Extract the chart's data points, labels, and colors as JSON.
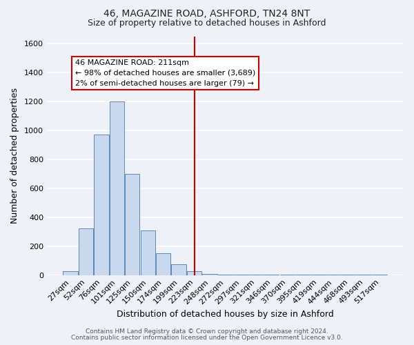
{
  "title_line1": "46, MAGAZINE ROAD, ASHFORD, TN24 8NT",
  "title_line2": "Size of property relative to detached houses in Ashford",
  "xlabel": "Distribution of detached houses by size in Ashford",
  "ylabel": "Number of detached properties",
  "categories": [
    "27sqm",
    "52sqm",
    "76sqm",
    "101sqm",
    "125sqm",
    "150sqm",
    "174sqm",
    "199sqm",
    "223sqm",
    "248sqm",
    "272sqm",
    "297sqm",
    "321sqm",
    "346sqm",
    "370sqm",
    "395sqm",
    "419sqm",
    "444sqm",
    "468sqm",
    "493sqm",
    "517sqm"
  ],
  "values": [
    25,
    325,
    970,
    1200,
    700,
    310,
    150,
    75,
    25,
    10,
    5,
    5,
    5,
    3,
    3,
    3,
    3,
    3,
    3,
    3,
    5
  ],
  "bar_color": "#c9d9ed",
  "bar_edge_color": "#5b8ab5",
  "vline_color": "#cc0000",
  "annotation_line1": "46 MAGAZINE ROAD: 211sqm",
  "annotation_line2": "← 98% of detached houses are smaller (3,689)",
  "annotation_line3": "2% of semi-detached houses are larger (79) →",
  "annotation_box_color": "#ffffff",
  "annotation_box_edge_color": "#cc0000",
  "ylim": [
    0,
    1650
  ],
  "yticks": [
    0,
    200,
    400,
    600,
    800,
    1000,
    1200,
    1400,
    1600
  ],
  "footer_line1": "Contains HM Land Registry data © Crown copyright and database right 2024.",
  "footer_line2": "Contains public sector information licensed under the Open Government Licence v3.0.",
  "bg_color": "#eef2f8",
  "grid_color": "#ffffff",
  "title1_fontsize": 10,
  "title2_fontsize": 9,
  "xlabel_fontsize": 9,
  "ylabel_fontsize": 9,
  "tick_fontsize": 8,
  "footer_fontsize": 6.5,
  "annot_fontsize": 8,
  "vline_x_index": 8
}
